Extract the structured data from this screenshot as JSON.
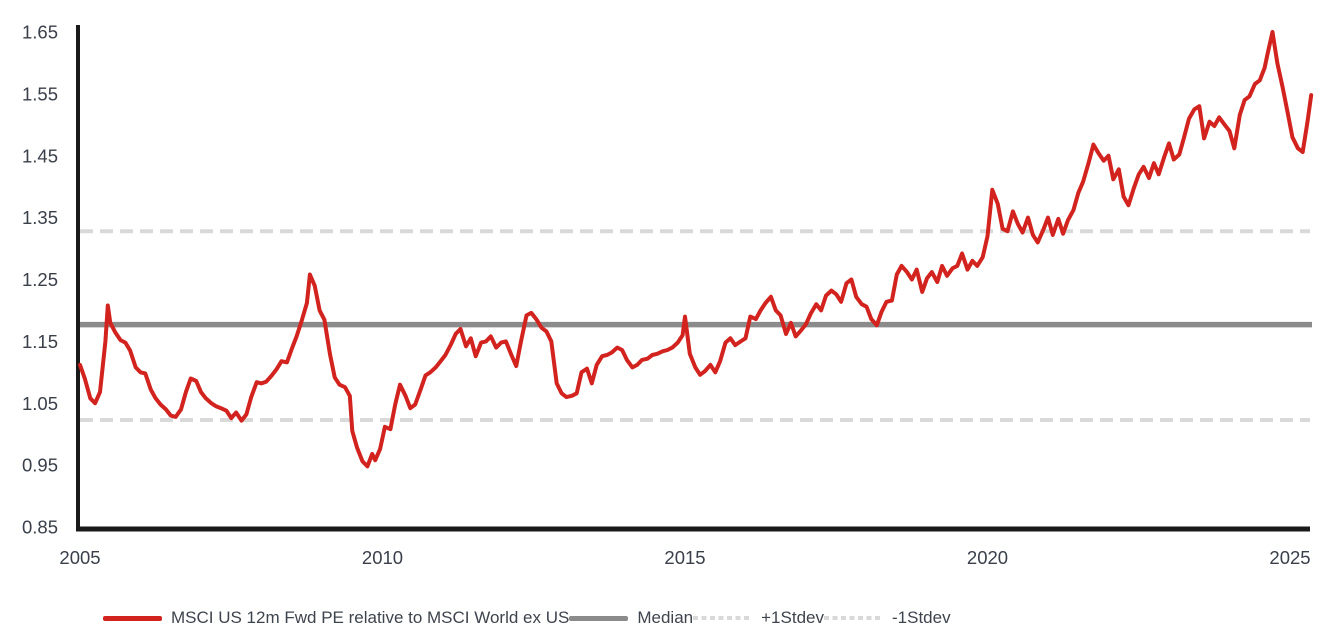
{
  "page": {
    "background": "#ffffff"
  },
  "chart_data": {
    "type": "line",
    "title": "",
    "xlabel": "",
    "ylabel": "",
    "grid": false,
    "legend_position": "bottom",
    "xlim": [
      2005,
      2025.5
    ],
    "ylim": [
      0.85,
      1.65
    ],
    "x_ticks": [
      "2005",
      "2010",
      "2015",
      "2020",
      "2025"
    ],
    "x_tick_years": [
      2005,
      2010,
      2015,
      2020,
      2025
    ],
    "y_ticks": [
      0.85,
      0.95,
      1.05,
      1.15,
      1.25,
      1.35,
      1.45,
      1.55,
      1.65
    ],
    "style": {
      "axis_color": "#1a1a1a",
      "tick_label_color": "#39404a",
      "tick_font_size": 18.5,
      "series_line_width": 4,
      "median_line_width": 5.5,
      "stdev_line_width": 4,
      "stdev_dash": "13 7"
    },
    "series": [
      {
        "name": "MSCI US 12m Fwd PE relative to MSCI World ex US",
        "color": "#d2231e",
        "style": "solid",
        "points": [
          [
            2005.0,
            1.112
          ],
          [
            2005.08,
            1.09
          ],
          [
            2005.17,
            1.058
          ],
          [
            2005.25,
            1.05
          ],
          [
            2005.33,
            1.068
          ],
          [
            2005.42,
            1.15
          ],
          [
            2005.46,
            1.208
          ],
          [
            2005.5,
            1.18
          ],
          [
            2005.58,
            1.165
          ],
          [
            2005.67,
            1.152
          ],
          [
            2005.75,
            1.148
          ],
          [
            2005.83,
            1.135
          ],
          [
            2005.92,
            1.108
          ],
          [
            2006.0,
            1.1
          ],
          [
            2006.08,
            1.098
          ],
          [
            2006.17,
            1.072
          ],
          [
            2006.25,
            1.058
          ],
          [
            2006.33,
            1.048
          ],
          [
            2006.42,
            1.04
          ],
          [
            2006.5,
            1.03
          ],
          [
            2006.58,
            1.028
          ],
          [
            2006.67,
            1.04
          ],
          [
            2006.75,
            1.068
          ],
          [
            2006.83,
            1.09
          ],
          [
            2006.92,
            1.086
          ],
          [
            2007.0,
            1.068
          ],
          [
            2007.08,
            1.058
          ],
          [
            2007.17,
            1.05
          ],
          [
            2007.25,
            1.045
          ],
          [
            2007.33,
            1.042
          ],
          [
            2007.42,
            1.038
          ],
          [
            2007.5,
            1.026
          ],
          [
            2007.58,
            1.035
          ],
          [
            2007.67,
            1.022
          ],
          [
            2007.75,
            1.032
          ],
          [
            2007.83,
            1.06
          ],
          [
            2007.92,
            1.084
          ],
          [
            2008.0,
            1.082
          ],
          [
            2008.08,
            1.085
          ],
          [
            2008.17,
            1.095
          ],
          [
            2008.25,
            1.105
          ],
          [
            2008.33,
            1.118
          ],
          [
            2008.42,
            1.116
          ],
          [
            2008.5,
            1.138
          ],
          [
            2008.58,
            1.158
          ],
          [
            2008.67,
            1.185
          ],
          [
            2008.75,
            1.212
          ],
          [
            2008.8,
            1.258
          ],
          [
            2008.88,
            1.24
          ],
          [
            2008.96,
            1.2
          ],
          [
            2009.04,
            1.185
          ],
          [
            2009.13,
            1.13
          ],
          [
            2009.21,
            1.092
          ],
          [
            2009.29,
            1.08
          ],
          [
            2009.38,
            1.076
          ],
          [
            2009.46,
            1.062
          ],
          [
            2009.5,
            1.005
          ],
          [
            2009.58,
            0.978
          ],
          [
            2009.67,
            0.956
          ],
          [
            2009.75,
            0.948
          ],
          [
            2009.83,
            0.968
          ],
          [
            2009.88,
            0.958
          ],
          [
            2009.96,
            0.976
          ],
          [
            2010.04,
            1.012
          ],
          [
            2010.13,
            1.008
          ],
          [
            2010.21,
            1.048
          ],
          [
            2010.29,
            1.08
          ],
          [
            2010.38,
            1.062
          ],
          [
            2010.46,
            1.042
          ],
          [
            2010.54,
            1.048
          ],
          [
            2010.63,
            1.072
          ],
          [
            2010.71,
            1.095
          ],
          [
            2010.79,
            1.1
          ],
          [
            2010.88,
            1.108
          ],
          [
            2010.96,
            1.118
          ],
          [
            2011.04,
            1.128
          ],
          [
            2011.13,
            1.145
          ],
          [
            2011.21,
            1.162
          ],
          [
            2011.29,
            1.17
          ],
          [
            2011.38,
            1.142
          ],
          [
            2011.46,
            1.155
          ],
          [
            2011.54,
            1.126
          ],
          [
            2011.63,
            1.148
          ],
          [
            2011.71,
            1.15
          ],
          [
            2011.79,
            1.158
          ],
          [
            2011.88,
            1.14
          ],
          [
            2011.96,
            1.148
          ],
          [
            2012.04,
            1.15
          ],
          [
            2012.13,
            1.128
          ],
          [
            2012.21,
            1.11
          ],
          [
            2012.29,
            1.15
          ],
          [
            2012.38,
            1.192
          ],
          [
            2012.46,
            1.196
          ],
          [
            2012.54,
            1.186
          ],
          [
            2012.63,
            1.172
          ],
          [
            2012.71,
            1.166
          ],
          [
            2012.79,
            1.15
          ],
          [
            2012.88,
            1.082
          ],
          [
            2012.96,
            1.066
          ],
          [
            2013.04,
            1.06
          ],
          [
            2013.13,
            1.062
          ],
          [
            2013.21,
            1.066
          ],
          [
            2013.29,
            1.1
          ],
          [
            2013.38,
            1.106
          ],
          [
            2013.46,
            1.082
          ],
          [
            2013.54,
            1.112
          ],
          [
            2013.63,
            1.126
          ],
          [
            2013.71,
            1.128
          ],
          [
            2013.79,
            1.132
          ],
          [
            2013.88,
            1.14
          ],
          [
            2013.96,
            1.136
          ],
          [
            2014.04,
            1.12
          ],
          [
            2014.13,
            1.108
          ],
          [
            2014.21,
            1.112
          ],
          [
            2014.29,
            1.12
          ],
          [
            2014.38,
            1.122
          ],
          [
            2014.46,
            1.128
          ],
          [
            2014.54,
            1.13
          ],
          [
            2014.63,
            1.134
          ],
          [
            2014.71,
            1.136
          ],
          [
            2014.79,
            1.14
          ],
          [
            2014.88,
            1.148
          ],
          [
            2014.96,
            1.16
          ],
          [
            2015.0,
            1.19
          ],
          [
            2015.08,
            1.13
          ],
          [
            2015.17,
            1.108
          ],
          [
            2015.25,
            1.096
          ],
          [
            2015.33,
            1.102
          ],
          [
            2015.42,
            1.112
          ],
          [
            2015.5,
            1.1
          ],
          [
            2015.58,
            1.118
          ],
          [
            2015.67,
            1.148
          ],
          [
            2015.75,
            1.155
          ],
          [
            2015.83,
            1.144
          ],
          [
            2015.92,
            1.15
          ],
          [
            2016.0,
            1.155
          ],
          [
            2016.08,
            1.19
          ],
          [
            2016.17,
            1.186
          ],
          [
            2016.25,
            1.2
          ],
          [
            2016.33,
            1.212
          ],
          [
            2016.42,
            1.222
          ],
          [
            2016.5,
            1.2
          ],
          [
            2016.58,
            1.192
          ],
          [
            2016.67,
            1.162
          ],
          [
            2016.75,
            1.18
          ],
          [
            2016.83,
            1.158
          ],
          [
            2016.92,
            1.168
          ],
          [
            2017.0,
            1.178
          ],
          [
            2017.08,
            1.195
          ],
          [
            2017.17,
            1.21
          ],
          [
            2017.25,
            1.2
          ],
          [
            2017.33,
            1.224
          ],
          [
            2017.42,
            1.232
          ],
          [
            2017.5,
            1.226
          ],
          [
            2017.58,
            1.214
          ],
          [
            2017.67,
            1.244
          ],
          [
            2017.75,
            1.25
          ],
          [
            2017.83,
            1.222
          ],
          [
            2017.92,
            1.21
          ],
          [
            2018.0,
            1.206
          ],
          [
            2018.08,
            1.186
          ],
          [
            2018.17,
            1.176
          ],
          [
            2018.25,
            1.198
          ],
          [
            2018.33,
            1.214
          ],
          [
            2018.42,
            1.216
          ],
          [
            2018.5,
            1.258
          ],
          [
            2018.58,
            1.272
          ],
          [
            2018.67,
            1.262
          ],
          [
            2018.75,
            1.25
          ],
          [
            2018.83,
            1.266
          ],
          [
            2018.92,
            1.23
          ],
          [
            2019.0,
            1.252
          ],
          [
            2019.08,
            1.262
          ],
          [
            2019.17,
            1.246
          ],
          [
            2019.25,
            1.272
          ],
          [
            2019.33,
            1.256
          ],
          [
            2019.42,
            1.268
          ],
          [
            2019.5,
            1.272
          ],
          [
            2019.58,
            1.292
          ],
          [
            2019.67,
            1.266
          ],
          [
            2019.75,
            1.28
          ],
          [
            2019.83,
            1.272
          ],
          [
            2019.92,
            1.286
          ],
          [
            2020.0,
            1.32
          ],
          [
            2020.08,
            1.395
          ],
          [
            2020.17,
            1.372
          ],
          [
            2020.25,
            1.332
          ],
          [
            2020.33,
            1.328
          ],
          [
            2020.42,
            1.36
          ],
          [
            2020.5,
            1.34
          ],
          [
            2020.58,
            1.326
          ],
          [
            2020.67,
            1.35
          ],
          [
            2020.75,
            1.322
          ],
          [
            2020.83,
            1.31
          ],
          [
            2020.92,
            1.33
          ],
          [
            2021.0,
            1.35
          ],
          [
            2021.08,
            1.322
          ],
          [
            2021.17,
            1.348
          ],
          [
            2021.25,
            1.324
          ],
          [
            2021.33,
            1.346
          ],
          [
            2021.42,
            1.362
          ],
          [
            2021.5,
            1.39
          ],
          [
            2021.58,
            1.408
          ],
          [
            2021.67,
            1.438
          ],
          [
            2021.75,
            1.468
          ],
          [
            2021.83,
            1.455
          ],
          [
            2021.92,
            1.442
          ],
          [
            2022.0,
            1.45
          ],
          [
            2022.08,
            1.412
          ],
          [
            2022.17,
            1.428
          ],
          [
            2022.25,
            1.384
          ],
          [
            2022.33,
            1.37
          ],
          [
            2022.42,
            1.398
          ],
          [
            2022.5,
            1.42
          ],
          [
            2022.58,
            1.432
          ],
          [
            2022.67,
            1.414
          ],
          [
            2022.75,
            1.438
          ],
          [
            2022.83,
            1.42
          ],
          [
            2022.92,
            1.448
          ],
          [
            2023.0,
            1.47
          ],
          [
            2023.08,
            1.444
          ],
          [
            2023.17,
            1.452
          ],
          [
            2023.25,
            1.48
          ],
          [
            2023.33,
            1.51
          ],
          [
            2023.42,
            1.525
          ],
          [
            2023.5,
            1.53
          ],
          [
            2023.58,
            1.478
          ],
          [
            2023.67,
            1.505
          ],
          [
            2023.75,
            1.498
          ],
          [
            2023.83,
            1.512
          ],
          [
            2023.92,
            1.5
          ],
          [
            2024.0,
            1.49
          ],
          [
            2024.08,
            1.462
          ],
          [
            2024.17,
            1.516
          ],
          [
            2024.25,
            1.54
          ],
          [
            2024.33,
            1.546
          ],
          [
            2024.42,
            1.566
          ],
          [
            2024.5,
            1.572
          ],
          [
            2024.58,
            1.592
          ],
          [
            2024.63,
            1.615
          ],
          [
            2024.71,
            1.65
          ],
          [
            2024.79,
            1.6
          ],
          [
            2024.88,
            1.56
          ],
          [
            2024.96,
            1.52
          ],
          [
            2025.04,
            1.48
          ],
          [
            2025.13,
            1.462
          ],
          [
            2025.21,
            1.456
          ],
          [
            2025.29,
            1.505
          ],
          [
            2025.35,
            1.548
          ]
        ]
      },
      {
        "name": "Median",
        "color": "#8b8b8b",
        "style": "solid",
        "value": 1.177
      },
      {
        "name": "+1Stdev",
        "color": "#d9d9d9",
        "style": "dashed",
        "value": 1.328
      },
      {
        "name": "-1Stdev",
        "color": "#d9d9d9",
        "style": "dashed",
        "value": 1.023
      }
    ]
  }
}
